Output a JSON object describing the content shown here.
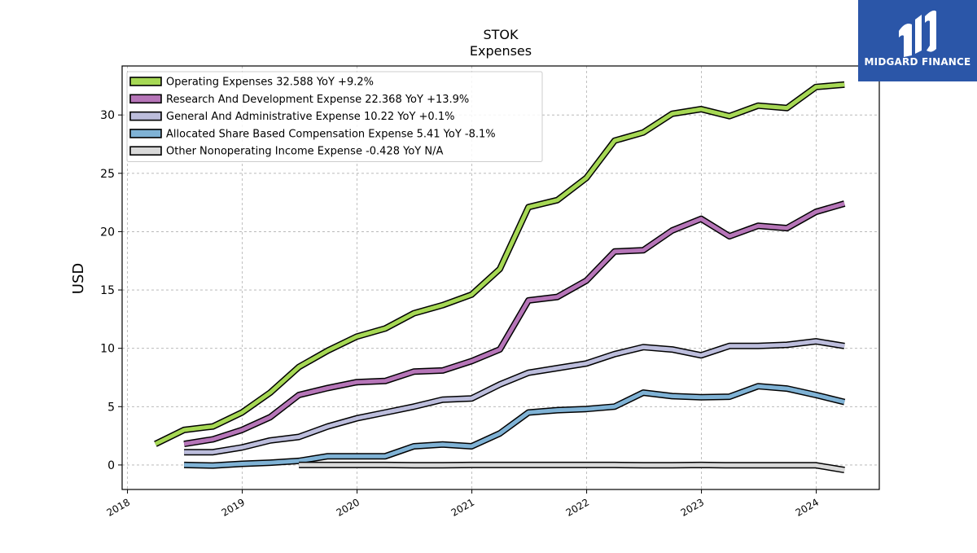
{
  "logo": {
    "text": "MIDGARD FINANCE",
    "bg_color": "#2b56a8"
  },
  "chart_data": {
    "type": "line",
    "title": "STOK",
    "subtitle": "Expenses",
    "ylabel": "USD",
    "xlabel": "",
    "xlim": [
      "2017-12-15",
      "2024-07-20"
    ],
    "ylim": [
      -2.1,
      34.2
    ],
    "x_ticks": [
      "2018",
      "2019",
      "2020",
      "2021",
      "2022",
      "2023",
      "2024"
    ],
    "y_ticks": [
      0,
      5,
      10,
      15,
      20,
      25,
      30
    ],
    "grid": true,
    "legend_position": "top-left",
    "series": [
      {
        "name": "Operating Expenses  32.588 YoY +9.2%",
        "color": "#a6d854",
        "x": [
          "2018-03-31",
          "2018-06-30",
          "2018-09-30",
          "2018-12-31",
          "2019-03-31",
          "2019-06-30",
          "2019-09-30",
          "2019-12-31",
          "2020-03-31",
          "2020-06-30",
          "2020-09-30",
          "2020-12-31",
          "2021-03-31",
          "2021-06-30",
          "2021-09-30",
          "2021-12-31",
          "2022-03-31",
          "2022-06-30",
          "2022-09-30",
          "2022-12-31",
          "2023-03-31",
          "2023-06-30",
          "2023-09-30",
          "2023-12-31",
          "2024-03-31"
        ],
        "y": [
          1.8,
          3.0,
          3.3,
          4.5,
          6.2,
          8.4,
          9.8,
          11.0,
          11.7,
          13.0,
          13.7,
          14.6,
          16.8,
          22.1,
          22.7,
          24.6,
          27.8,
          28.5,
          30.1,
          30.5,
          29.9,
          30.8,
          30.6,
          32.4,
          32.6
        ]
      },
      {
        "name": "Research And Development Expense  22.368 YoY +13.9%",
        "color": "#b675b8",
        "x": [
          "2018-06-30",
          "2018-09-30",
          "2018-12-31",
          "2019-03-31",
          "2019-06-30",
          "2019-09-30",
          "2019-12-31",
          "2020-03-31",
          "2020-06-30",
          "2020-09-30",
          "2020-12-31",
          "2021-03-31",
          "2021-06-30",
          "2021-09-30",
          "2021-12-31",
          "2022-03-31",
          "2022-06-30",
          "2022-09-30",
          "2022-12-31",
          "2023-03-31",
          "2023-06-30",
          "2023-09-30",
          "2023-12-31",
          "2024-03-31"
        ],
        "y": [
          1.8,
          2.2,
          3.0,
          4.1,
          6.0,
          6.6,
          7.1,
          7.2,
          8.0,
          8.1,
          8.9,
          9.9,
          14.1,
          14.4,
          15.8,
          18.3,
          18.4,
          20.1,
          21.1,
          19.6,
          20.5,
          20.3,
          21.7,
          22.4
        ]
      },
      {
        "name": "General And Administrative Expense  10.22 YoY +0.1%",
        "color": "#bcbddc",
        "x": [
          "2018-06-30",
          "2018-09-30",
          "2018-12-31",
          "2019-03-31",
          "2019-06-30",
          "2019-09-30",
          "2019-12-31",
          "2020-03-31",
          "2020-06-30",
          "2020-09-30",
          "2020-12-31",
          "2021-03-31",
          "2021-06-30",
          "2021-09-30",
          "2021-12-31",
          "2022-03-31",
          "2022-06-30",
          "2022-09-30",
          "2022-12-31",
          "2023-03-31",
          "2023-06-30",
          "2023-09-30",
          "2023-12-31",
          "2024-03-31"
        ],
        "y": [
          1.1,
          1.1,
          1.5,
          2.1,
          2.4,
          3.3,
          4.0,
          4.5,
          5.0,
          5.6,
          5.7,
          6.9,
          7.9,
          8.3,
          8.7,
          9.5,
          10.1,
          9.9,
          9.4,
          10.2,
          10.2,
          10.3,
          10.6,
          10.2
        ]
      },
      {
        "name": "Allocated Share Based Compensation Expense  5.41 YoY -8.1%",
        "color": "#7fb2d5",
        "x": [
          "2018-06-30",
          "2018-09-30",
          "2018-12-31",
          "2019-03-31",
          "2019-06-30",
          "2019-09-30",
          "2019-12-31",
          "2020-03-31",
          "2020-06-30",
          "2020-09-30",
          "2020-12-31",
          "2021-03-31",
          "2021-06-30",
          "2021-09-30",
          "2021-12-31",
          "2022-03-31",
          "2022-06-30",
          "2022-09-30",
          "2022-12-31",
          "2023-03-31",
          "2023-06-30",
          "2023-09-30",
          "2023-12-31",
          "2024-03-31"
        ],
        "y": [
          0.0,
          -0.05,
          0.1,
          0.2,
          0.35,
          0.75,
          0.75,
          0.75,
          1.6,
          1.75,
          1.6,
          2.7,
          4.5,
          4.7,
          4.8,
          5.0,
          6.2,
          5.9,
          5.8,
          5.85,
          6.75,
          6.55,
          6.0,
          5.4
        ]
      },
      {
        "name": "Other Nonoperating Income Expense  -0.428 YoY N/A",
        "color": "#d9d9d9",
        "x": [
          "2019-06-30",
          "2019-09-30",
          "2019-12-31",
          "2020-03-31",
          "2020-06-30",
          "2020-09-30",
          "2020-12-31",
          "2021-03-31",
          "2021-06-30",
          "2021-09-30",
          "2021-12-31",
          "2022-03-31",
          "2022-06-30",
          "2022-09-30",
          "2022-12-31",
          "2023-03-31",
          "2023-06-30",
          "2023-09-30",
          "2023-12-31",
          "2024-03-31"
        ],
        "y": [
          0.0,
          0.0,
          0.0,
          0.0,
          -0.03,
          -0.03,
          0.0,
          0.0,
          0.0,
          0.0,
          0.0,
          0.0,
          -0.03,
          -0.03,
          0.0,
          -0.03,
          -0.03,
          -0.03,
          -0.03,
          -0.43
        ]
      }
    ]
  }
}
